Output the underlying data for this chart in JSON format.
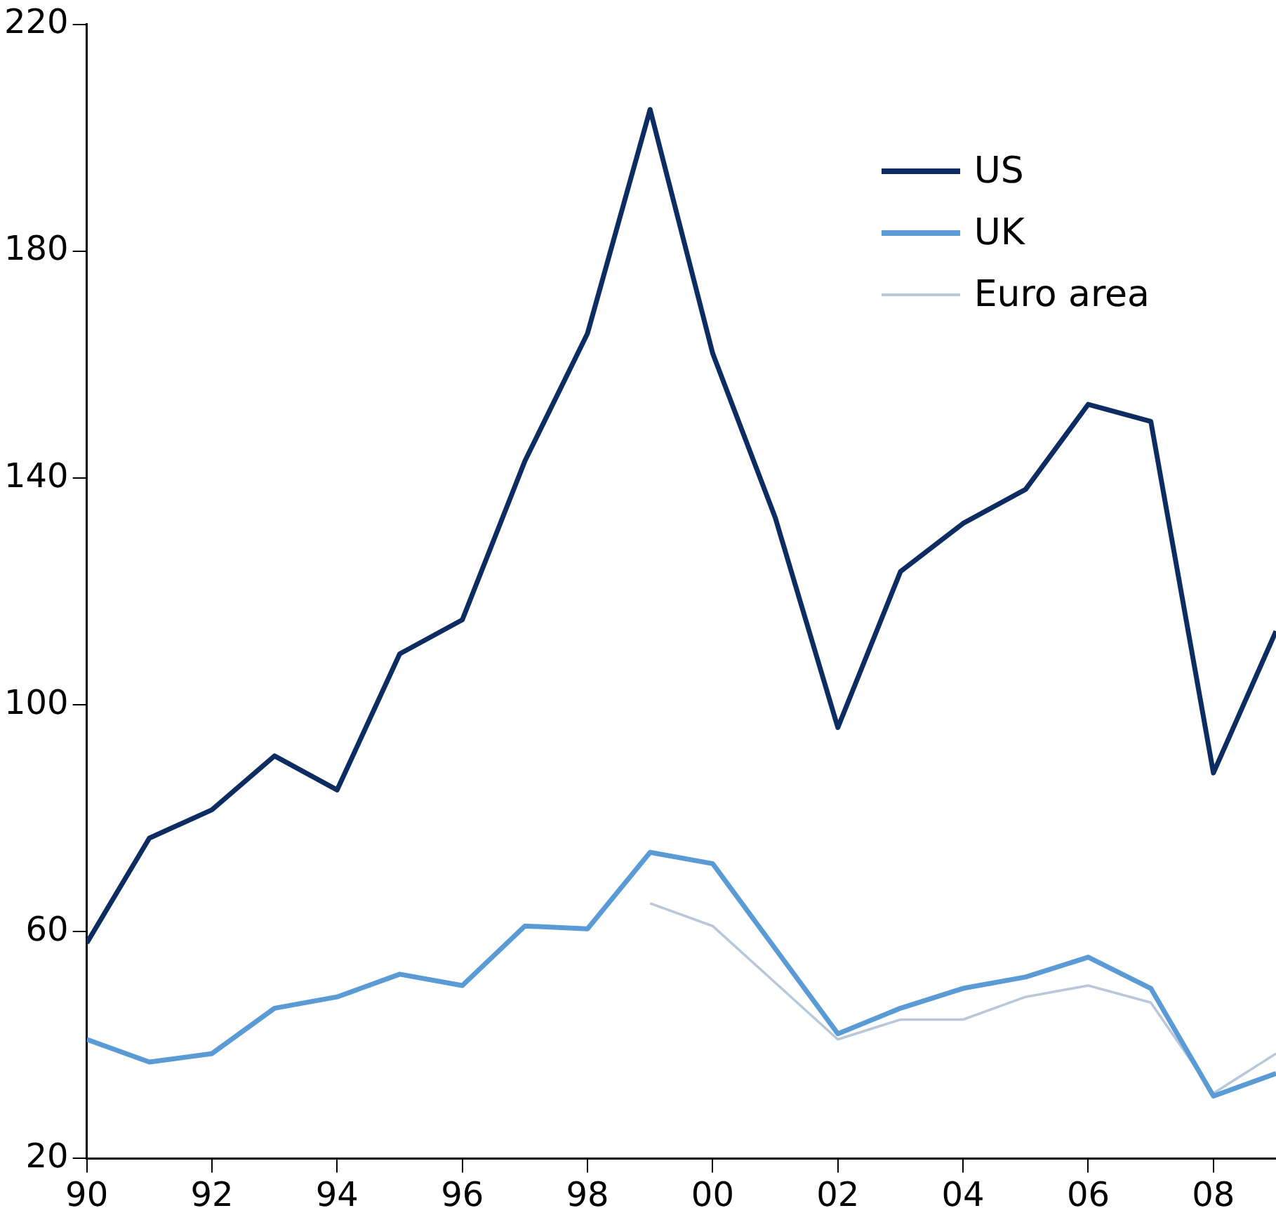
{
  "chart_data": {
    "type": "line",
    "x": [
      1990,
      1991,
      1992,
      1993,
      1994,
      1995,
      1996,
      1997,
      1998,
      1999,
      2000,
      2001,
      2002,
      2003,
      2004,
      2005,
      2006,
      2007,
      2008,
      2009
    ],
    "series": [
      {
        "name": "US",
        "color": "#0d2d62",
        "values": [
          58,
          76.5,
          81.5,
          91,
          85,
          109,
          115,
          143,
          165.5,
          205,
          162,
          133,
          96,
          123.5,
          132,
          138,
          153,
          150,
          88,
          113
        ]
      },
      {
        "name": "UK",
        "color": "#5b9bd5",
        "values": [
          41,
          37,
          38.5,
          46.5,
          48.5,
          52.5,
          50.5,
          61,
          60.5,
          74,
          72,
          57,
          42,
          46.5,
          50,
          52,
          55.5,
          50,
          31,
          35
        ]
      },
      {
        "name": "Euro area",
        "color": "#b8c8d8",
        "values": [
          null,
          null,
          null,
          null,
          null,
          null,
          null,
          null,
          null,
          65,
          61,
          51,
          41,
          44.5,
          44.5,
          48.5,
          50.5,
          47.5,
          31.5,
          38.5
        ]
      }
    ],
    "xlim": [
      1990,
      2009
    ],
    "xticks": [
      {
        "value": 1990,
        "label": "90"
      },
      {
        "value": 1992,
        "label": "92"
      },
      {
        "value": 1994,
        "label": "94"
      },
      {
        "value": 1996,
        "label": "96"
      },
      {
        "value": 1998,
        "label": "98"
      },
      {
        "value": 2000,
        "label": "00"
      },
      {
        "value": 2002,
        "label": "02"
      },
      {
        "value": 2004,
        "label": "04"
      },
      {
        "value": 2006,
        "label": "06"
      },
      {
        "value": 2008,
        "label": "08"
      }
    ],
    "ylim": [
      20,
      220
    ],
    "yticks": [
      20,
      60,
      100,
      140,
      180,
      220
    ],
    "grid": false,
    "legend": "top right",
    "marker": "none",
    "line_style": "solid"
  }
}
